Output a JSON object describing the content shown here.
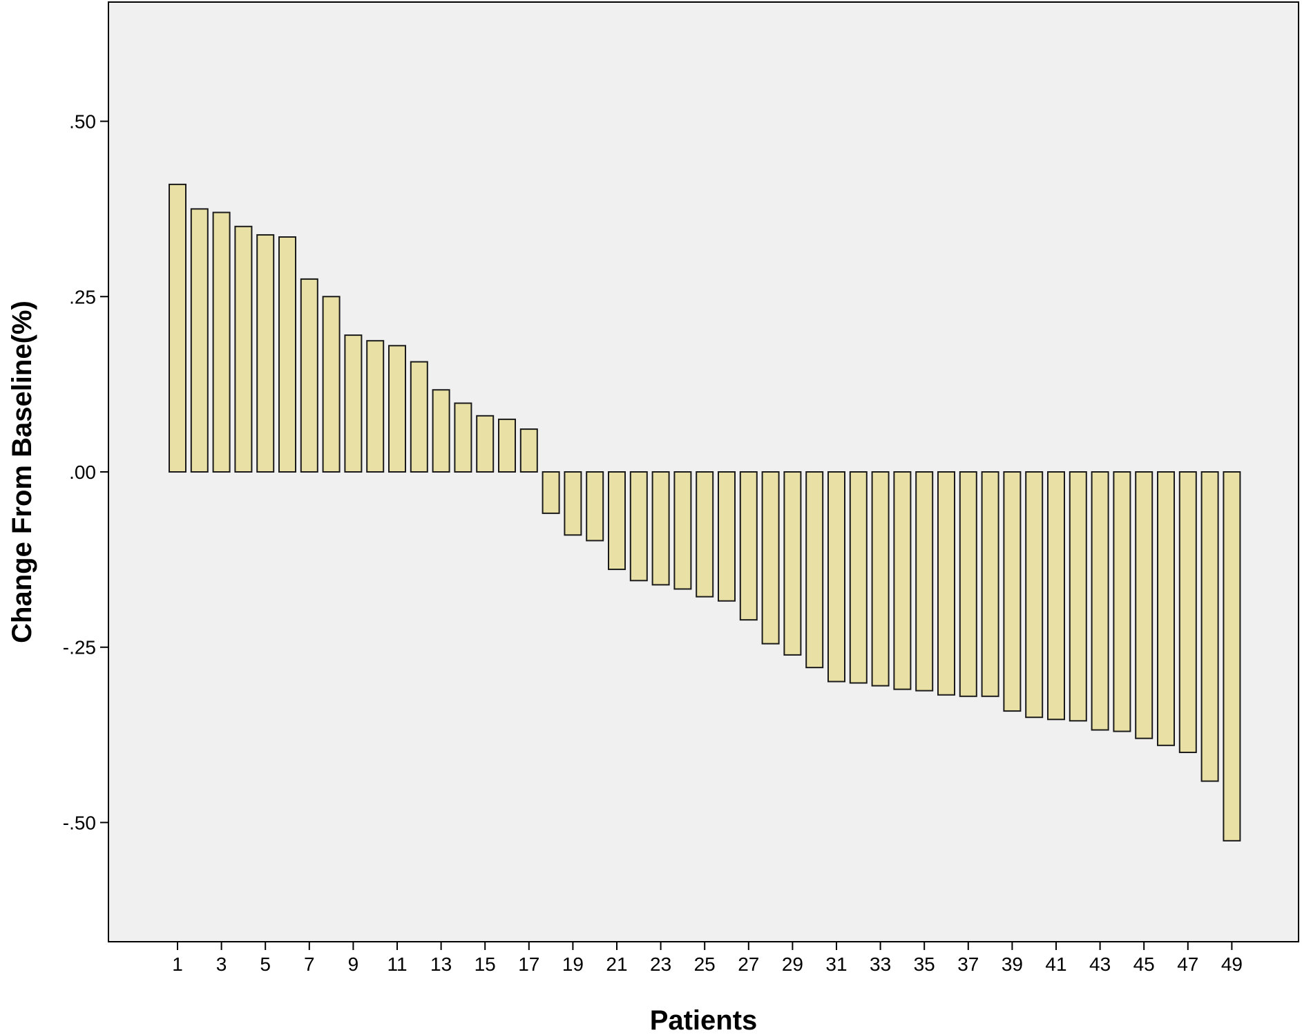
{
  "chart_data": {
    "type": "bar",
    "title": "",
    "xlabel": "Patients",
    "ylabel": "Change From Baseline(%)",
    "ylim": [
      -0.67,
      0.67
    ],
    "yticks": [
      0.5,
      0.25,
      0.0,
      -0.25,
      -0.5
    ],
    "ytick_labels": [
      ".50",
      ".25",
      ".00",
      "-.25",
      "-.50"
    ],
    "categories": [
      "1",
      "2",
      "3",
      "4",
      "5",
      "6",
      "7",
      "8",
      "9",
      "10",
      "11",
      "12",
      "13",
      "14",
      "15",
      "16",
      "17",
      "18",
      "19",
      "20",
      "21",
      "22",
      "23",
      "24",
      "25",
      "26",
      "27",
      "28",
      "29",
      "30",
      "31",
      "32",
      "33",
      "34",
      "35",
      "36",
      "37",
      "38",
      "39",
      "40",
      "41",
      "42",
      "43",
      "44",
      "45",
      "46",
      "47",
      "48",
      "49"
    ],
    "xtick_labels": [
      "1",
      "3",
      "5",
      "7",
      "9",
      "11",
      "13",
      "15",
      "17",
      "19",
      "21",
      "23",
      "25",
      "27",
      "29",
      "31",
      "33",
      "35",
      "37",
      "39",
      "41",
      "43",
      "45",
      "47",
      "49"
    ],
    "values": [
      0.41,
      0.375,
      0.37,
      0.35,
      0.338,
      0.335,
      0.275,
      0.25,
      0.195,
      0.187,
      0.18,
      0.157,
      0.117,
      0.098,
      0.08,
      0.075,
      0.061,
      -0.059,
      -0.09,
      -0.098,
      -0.139,
      -0.155,
      -0.161,
      -0.167,
      -0.178,
      -0.184,
      -0.211,
      -0.245,
      -0.261,
      -0.279,
      -0.299,
      -0.301,
      -0.305,
      -0.31,
      -0.312,
      -0.318,
      -0.32,
      -0.32,
      -0.341,
      -0.35,
      -0.353,
      -0.355,
      -0.368,
      -0.37,
      -0.38,
      -0.39,
      -0.4,
      -0.441,
      -0.526
    ],
    "grid": false,
    "colors": {
      "bar_fill": "#e8e0a4",
      "bar_stroke": "#1a1a1a",
      "plot_background": "#f0f0f0",
      "page_background": "#ffffff",
      "axis": "#000000"
    }
  }
}
